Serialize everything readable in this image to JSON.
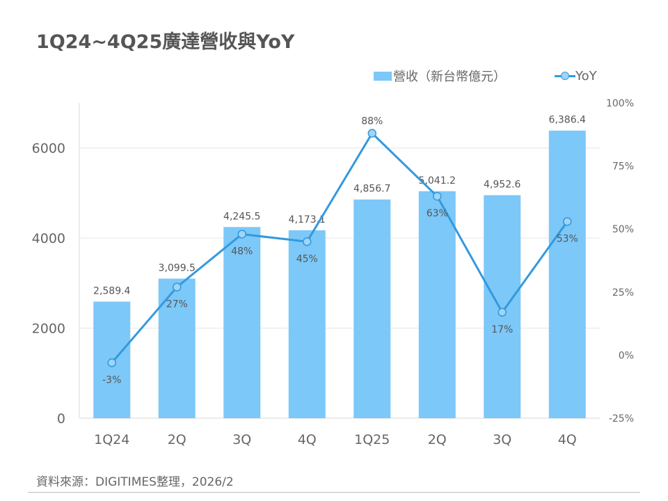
{
  "title": "1Q24~4Q25廣達營收與YoY",
  "source": "資料來源：DIGITIMES整理，2026/2",
  "colors": {
    "bar": "#7cc8f8",
    "line": "#3399dd",
    "marker_fill": "#9fd5f6",
    "grid": "#e6e6e6",
    "axis_text": "#666666"
  },
  "chart_data": {
    "type": "bar",
    "categories": [
      "1Q24",
      "2Q",
      "3Q",
      "4Q",
      "1Q25",
      "2Q",
      "3Q",
      "4Q"
    ],
    "series": [
      {
        "name": "營收（新台幣億元）",
        "type": "bar",
        "axis": "left",
        "values": [
          2589.4,
          3099.5,
          4245.5,
          4173.1,
          4856.7,
          5041.2,
          4952.6,
          6386.4
        ],
        "labels": [
          "2,589.4",
          "3,099.5",
          "4,245.5",
          "4,173.1",
          "4,856.7",
          "5,041.2",
          "4,952.6",
          "6,386.4"
        ]
      },
      {
        "name": "YoY",
        "type": "line",
        "axis": "right",
        "values": [
          -3,
          27,
          48,
          45,
          88,
          63,
          17,
          53
        ],
        "labels": [
          "-3%",
          "27%",
          "48%",
          "45%",
          "88%",
          "63%",
          "17%",
          "53%"
        ]
      }
    ],
    "y_left": {
      "ylim": [
        0,
        7000
      ],
      "ticks": [
        0,
        2000,
        4000,
        6000
      ],
      "tick_labels": [
        "0",
        "2000",
        "4000",
        "6000"
      ]
    },
    "y_right": {
      "ylim": [
        -25,
        100
      ],
      "ticks": [
        -25,
        0,
        25,
        50,
        75,
        100
      ],
      "tick_labels": [
        "-25%",
        "0%",
        "25%",
        "50%",
        "75%",
        "100%"
      ]
    },
    "grid": true,
    "legend_position": "top-right"
  }
}
